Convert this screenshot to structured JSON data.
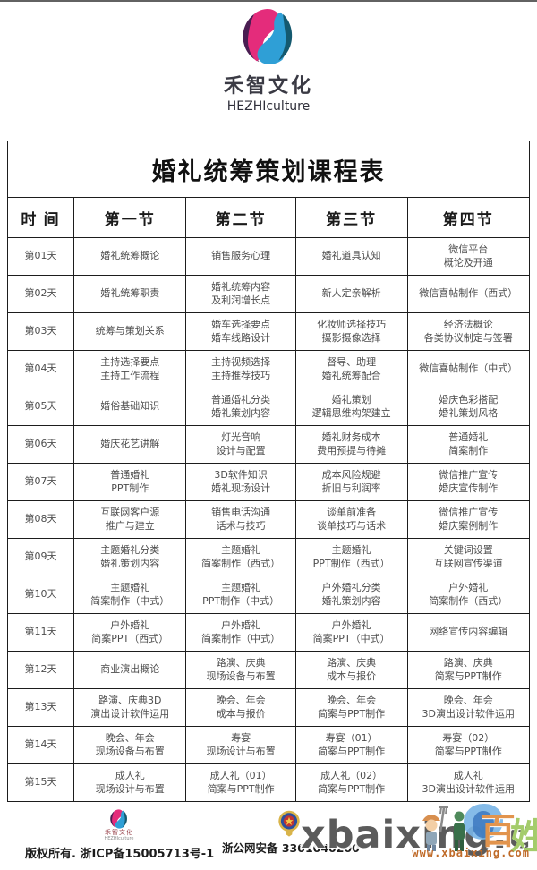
{
  "brand": {
    "name_cn": "禾智文化",
    "name_en": "HEZHIculture",
    "logo_colors": {
      "magenta": "#e42c7b",
      "purple": "#4a1d52",
      "blue": "#2f9fd6",
      "teal": "#14596f"
    }
  },
  "table": {
    "title": "婚礼统筹策划课程表",
    "headers": [
      "时 间",
      "第一节",
      "第二节",
      "第三节",
      "第四节"
    ],
    "rows": [
      {
        "day": "第01天",
        "cells": [
          [
            "婚礼统筹概论"
          ],
          [
            "销售服务心理"
          ],
          [
            "婚礼道具认知"
          ],
          [
            "微信平台",
            "概论及开通"
          ]
        ]
      },
      {
        "day": "第02天",
        "cells": [
          [
            "婚礼统筹职责"
          ],
          [
            "婚礼统筹内容",
            "及利润增长点"
          ],
          [
            "新人定亲解析"
          ],
          [
            "微信喜帖制作（西式）"
          ]
        ]
      },
      {
        "day": "第03天",
        "cells": [
          [
            "统筹与策划关系"
          ],
          [
            "婚车选择要点",
            "婚车线路设计"
          ],
          [
            "化妆师选择技巧",
            "摄影摄像选择"
          ],
          [
            "经济法概论",
            "各类协议制定与签署"
          ]
        ]
      },
      {
        "day": "第04天",
        "cells": [
          [
            "主持选择要点",
            "主持工作流程"
          ],
          [
            "主持视频选择",
            "主持推荐技巧"
          ],
          [
            "督导、助理",
            "婚礼统筹配合"
          ],
          [
            "微信喜帖制作（中式）"
          ]
        ]
      },
      {
        "day": "第05天",
        "cells": [
          [
            "婚俗基础知识"
          ],
          [
            "普通婚礼分类",
            "婚礼策划内容"
          ],
          [
            "婚礼策划",
            "逻辑思维构架建立"
          ],
          [
            "婚庆色彩搭配",
            "婚礼策划风格"
          ]
        ]
      },
      {
        "day": "第06天",
        "cells": [
          [
            "婚庆花艺讲解"
          ],
          [
            "灯光音响",
            "设计与配置"
          ],
          [
            "婚礼财务成本",
            "费用预提与待摊"
          ],
          [
            "普通婚礼",
            "简案制作"
          ]
        ]
      },
      {
        "day": "第07天",
        "cells": [
          [
            "普通婚礼",
            "PPT制作"
          ],
          [
            "3D软件知识",
            "婚礼现场设计"
          ],
          [
            "成本风险规避",
            "折旧与利润率"
          ],
          [
            "微信推广宣传",
            "婚庆宣传制作"
          ]
        ]
      },
      {
        "day": "第08天",
        "cells": [
          [
            "互联网客户源",
            "推广与建立"
          ],
          [
            "销售电话沟通",
            "话术与技巧"
          ],
          [
            "谈单前准备",
            "谈单技巧与话术"
          ],
          [
            "微信推广宣传",
            "婚庆案例制作"
          ]
        ]
      },
      {
        "day": "第09天",
        "cells": [
          [
            "主题婚礼分类",
            "婚礼策划内容"
          ],
          [
            "主题婚礼",
            "简案制作（西式）"
          ],
          [
            "主题婚礼",
            "PPT制作（西式）"
          ],
          [
            "关键词设置",
            "互联网宣传渠道"
          ]
        ]
      },
      {
        "day": "第10天",
        "cells": [
          [
            "主题婚礼",
            "简案制作（中式）"
          ],
          [
            "主题婚礼",
            "PPT制作（中式）"
          ],
          [
            "户外婚礼分类",
            "婚礼策划内容"
          ],
          [
            "户外婚礼",
            "简案制作（西式）"
          ]
        ]
      },
      {
        "day": "第11天",
        "cells": [
          [
            "户外婚礼",
            "简案PPT（西式）"
          ],
          [
            "户外婚礼",
            "简案制作（中式）"
          ],
          [
            "户外婚礼",
            "简案PPT（中式）"
          ],
          [
            "网络宣传内容编辑"
          ]
        ]
      },
      {
        "day": "第12天",
        "cells": [
          [
            "商业演出概论"
          ],
          [
            "路演、庆典",
            "现场设备与布置"
          ],
          [
            "路演、庆典",
            "成本与报价"
          ],
          [
            "路演、庆典",
            "简案与PPT制作"
          ]
        ]
      },
      {
        "day": "第13天",
        "cells": [
          [
            "路演、庆典3D",
            "演出设计软件运用"
          ],
          [
            "晚会、年会",
            "成本与报价"
          ],
          [
            "晚会、年会",
            "简案与PPT制作"
          ],
          [
            "晚会、年会",
            "3D演出设计软件运用"
          ]
        ]
      },
      {
        "day": "第14天",
        "cells": [
          [
            "晚会、年会",
            "现场设备与布置"
          ],
          [
            "寿宴",
            "现场设计与布置"
          ],
          [
            "寿宴（01）",
            "简案与PPT制作"
          ],
          [
            "寿宴（02）",
            "简案与PPT制作"
          ]
        ]
      },
      {
        "day": "第15天",
        "cells": [
          [
            "成人礼",
            "现场设计与布置"
          ],
          [
            "成人礼（01）",
            "简案与PPT制作"
          ],
          [
            "成人礼（02）",
            "简案与PPT制作"
          ],
          [
            "成人礼",
            "3D演出设计软件运用"
          ]
        ]
      }
    ]
  },
  "footer": {
    "copyright": "版权所有. 浙ICP备15005713号-1",
    "police_record": "浙公网安备 3301040200",
    "watermark_large": "xbaixing.com",
    "watermark_url": "www.xbaixing.com",
    "watermark_chars": [
      "百",
      "姓"
    ]
  }
}
